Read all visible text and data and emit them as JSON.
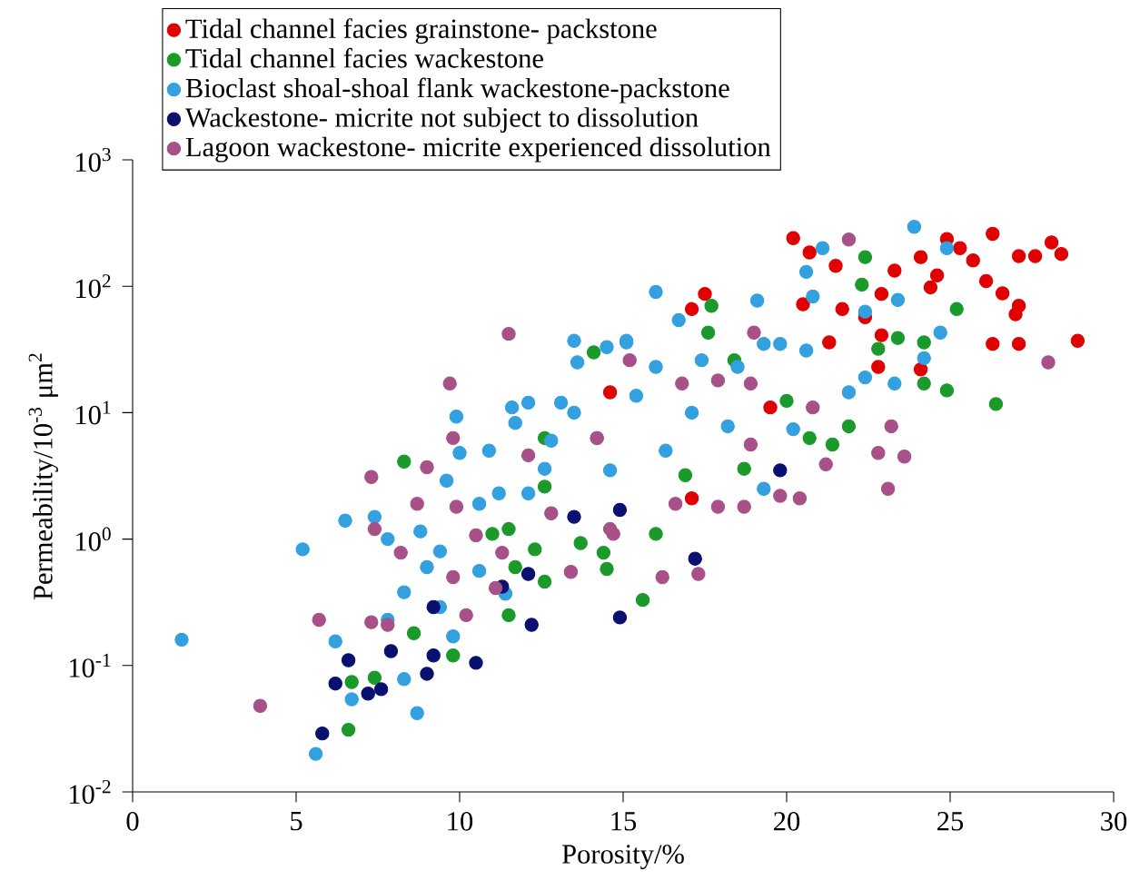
{
  "chart_data": {
    "type": "scatter",
    "xlabel": "Porosity/%",
    "ylabel": "Permeability/10$^{-3}$ μm$^{2}$",
    "log": "y",
    "marker": "circle",
    "legend": "top left",
    "xlim": [
      0,
      30
    ],
    "xticks": [
      0,
      5,
      10,
      15,
      20,
      25,
      30
    ],
    "ylim": [
      0.01,
      1000
    ],
    "yticks": [
      {
        "value": 0.01,
        "label": "10$^{-2}$"
      },
      {
        "value": 0.1,
        "label": "10$^{-1}$"
      },
      {
        "value": 1,
        "label": "10$^{0}$"
      },
      {
        "value": 10,
        "label": "10$^{1}$"
      },
      {
        "value": 100,
        "label": "10$^{2}$"
      },
      {
        "value": 1000,
        "label": "10$^{3}$"
      }
    ],
    "series": [
      {
        "name": "Tidal channel facies grainstone- packstone",
        "color": "#e00000",
        "x": [
          14.6,
          20.2,
          20.7,
          21.5,
          23.3,
          24.1,
          24.6,
          24.9,
          25.7,
          26.3,
          27.1,
          27.6,
          28.1,
          28.4,
          26.1,
          26.6,
          27.1,
          27.0,
          26.3,
          27.1,
          28.9,
          22.9,
          22.4,
          21.7,
          20.5,
          17.1,
          17.5,
          21.3,
          22.9,
          22.8,
          24.1,
          19.5,
          17.1,
          24.4,
          25.3
        ],
        "values": [
          14.5,
          240,
          185,
          145,
          133,
          170,
          122,
          236,
          160,
          260,
          173,
          173,
          222,
          180,
          110,
          88,
          70,
          60,
          35,
          35,
          37,
          87,
          57,
          66,
          72,
          66,
          87,
          36,
          41,
          23,
          22,
          11,
          2.1,
          98,
          200
        ]
      },
      {
        "name": "Tidal channel facies wackestone",
        "color": "#1a9a2a",
        "x": [
          8.3,
          8.6,
          9.8,
          7.4,
          6.7,
          6.6,
          11.5,
          11.5,
          11.0,
          12.3,
          12.6,
          13.7,
          14.4,
          14.5,
          14.1,
          12.6,
          12.6,
          11.7,
          22.4,
          22.3,
          17.7,
          17.6,
          25.2,
          24.9,
          26.4,
          24.2,
          23.4,
          24.2,
          20.0,
          20.7,
          21.4,
          21.9,
          18.7,
          16.9,
          16.0,
          15.6,
          22.8,
          18.4
        ],
        "values": [
          4.1,
          0.18,
          0.12,
          0.08,
          0.074,
          0.031,
          1.2,
          0.25,
          1.1,
          0.83,
          0.46,
          0.93,
          0.78,
          0.58,
          30,
          6.3,
          2.6,
          0.6,
          170,
          103,
          70,
          43,
          66,
          15,
          11.7,
          17,
          39,
          36,
          12.4,
          6.3,
          5.6,
          7.8,
          3.6,
          3.2,
          1.1,
          0.33,
          32,
          26
        ]
      },
      {
        "name": "Bioclast shoal-shoal flank wackestone-packstone",
        "color": "#33a0e0",
        "x": [
          1.5,
          5.2,
          5.6,
          6.2,
          6.5,
          7.4,
          7.8,
          8.3,
          8.7,
          8.3,
          6.7,
          8.8,
          9.0,
          9.4,
          9.9,
          10.0,
          9.6,
          9.8,
          9.4,
          10.6,
          10.9,
          11.6,
          12.1,
          13.1,
          13.5,
          13.5,
          13.6,
          14.5,
          15.1,
          11.7,
          11.2,
          12.1,
          12.6,
          10.6,
          12.8,
          14.2,
          14.6,
          11.4,
          7.8,
          23.9,
          19.1,
          16.0,
          16.7,
          20.6,
          20.8,
          22.4,
          23.4,
          24.7,
          24.2,
          23.3,
          21.9,
          22.4,
          19.8,
          20.6,
          19.3,
          15.1,
          17.4,
          18.5,
          16.0,
          15.4,
          17.1,
          18.2,
          20.2,
          19.3,
          16.3,
          24.9,
          21.1
        ],
        "values": [
          0.16,
          0.83,
          0.02,
          0.155,
          1.4,
          1.5,
          1.0,
          0.38,
          0.042,
          0.078,
          0.054,
          1.15,
          0.6,
          0.8,
          9.3,
          4.8,
          2.9,
          0.17,
          0.29,
          0.56,
          5,
          11,
          12,
          12,
          10,
          37,
          25,
          33,
          36,
          8.3,
          2.3,
          2.3,
          3.6,
          1.9,
          6,
          6.3,
          3.5,
          0.37,
          0.23,
          295,
          77,
          90,
          54,
          130,
          83,
          63,
          78,
          43,
          27,
          17,
          14.5,
          19,
          35,
          31,
          35,
          37,
          26,
          23,
          23,
          13.6,
          10,
          7.8,
          7.4,
          2.5,
          5,
          200,
          200
        ]
      },
      {
        "name": "Wackestone- micrite not subject to dissolution",
        "color": "#0a1070",
        "x": [
          6.6,
          6.2,
          5.8,
          7.2,
          7.6,
          7.9,
          9.0,
          9.2,
          9.2,
          10.5,
          11.3,
          12.1,
          12.2,
          14.9,
          13.5,
          14.9,
          19.8,
          17.2
        ],
        "values": [
          0.11,
          0.072,
          0.029,
          0.06,
          0.065,
          0.13,
          0.086,
          0.12,
          0.29,
          0.105,
          0.42,
          0.53,
          0.21,
          0.24,
          1.5,
          1.7,
          3.5,
          0.7
        ]
      },
      {
        "name": "Lagoon wackestone- micrite experienced dissolution",
        "color": "#a85088",
        "x": [
          3.9,
          5.7,
          7.3,
          7.3,
          7.4,
          8.2,
          9.0,
          9.7,
          9.8,
          9.8,
          9.9,
          8.7,
          10.2,
          10.5,
          11.5,
          11.3,
          11.1,
          12.1,
          12.8,
          13.4,
          14.2,
          14.6,
          7.8,
          21.9,
          28.0,
          19.0,
          18.9,
          19.8,
          20.4,
          21.2,
          22.8,
          23.6,
          23.1,
          23.2,
          20.8,
          17.9,
          16.8,
          16.6,
          16.2,
          17.3,
          17.9,
          18.7,
          15.2,
          14.7,
          18.9
        ],
        "values": [
          0.048,
          0.23,
          0.22,
          3.1,
          1.2,
          0.78,
          3.7,
          17,
          6.3,
          0.5,
          1.8,
          1.9,
          0.25,
          1.07,
          42,
          0.78,
          0.41,
          4.6,
          1.6,
          0.55,
          6.3,
          1.2,
          0.21,
          234,
          25,
          43,
          5.6,
          2.2,
          2.1,
          3.9,
          4.8,
          4.5,
          2.5,
          7.8,
          11,
          18,
          17,
          1.9,
          0.5,
          0.53,
          1.8,
          1.8,
          26,
          1.1,
          17
        ]
      }
    ]
  }
}
